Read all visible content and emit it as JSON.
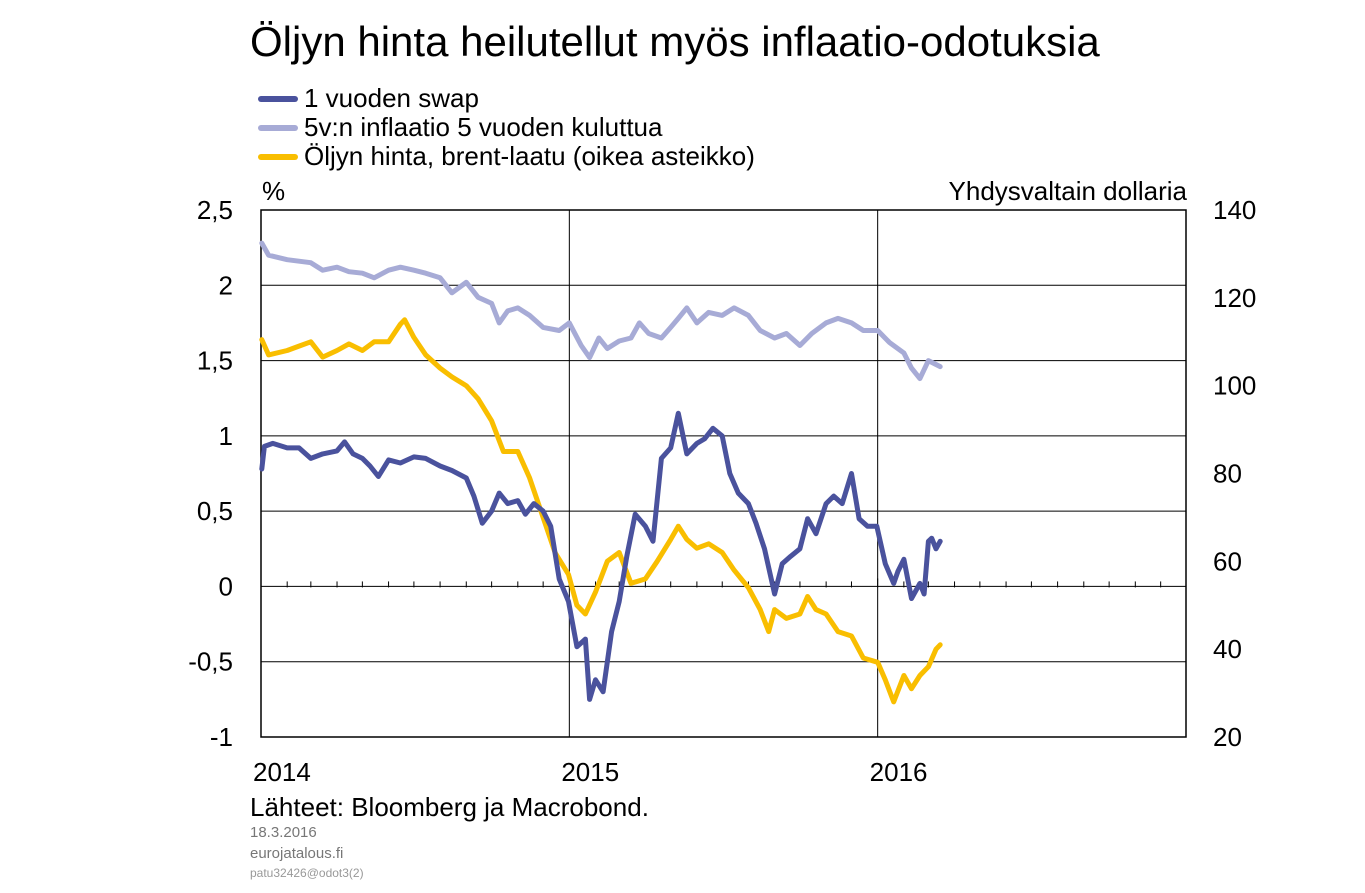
{
  "header": {
    "title": "Öljyn hinta heilutellut myös inflaatio-odotuksia"
  },
  "legend": [
    {
      "label": "1 vuoden swap",
      "color": "#4a529d"
    },
    {
      "label": "5v:n inflaatio 5 vuoden kuluttua",
      "color": "#a7abd6"
    },
    {
      "label": "Öljyn hinta, brent-laatu (oikea asteikko)",
      "color": "#f9be00"
    }
  ],
  "axes": {
    "left_unit": "%",
    "right_unit": "Yhdysvaltain dollaria"
  },
  "footer": {
    "source": "Lähteet: Bloomberg ja Macrobond.",
    "date": "18.3.2016",
    "site": "eurojatalous.fi",
    "code": "patu32426@odot3(2)"
  },
  "chart_data": {
    "type": "line",
    "x_range": [
      "2014-01-01",
      "2016-12-31"
    ],
    "x_tick_labels": [
      "2014",
      "2015",
      "2016"
    ],
    "y_left": {
      "min": -1,
      "max": 2.5,
      "ticks": [
        "2,5",
        "2",
        "1,5",
        "1",
        "0,5",
        "0",
        "-0,5",
        "-1"
      ]
    },
    "y_right": {
      "min": 20,
      "max": 140,
      "ticks": [
        "140",
        "120",
        "100",
        "80",
        "60",
        "40",
        "20"
      ]
    },
    "grid": true,
    "series": [
      {
        "name": "1 vuoden swap",
        "axis": "left",
        "color": "#4a529d",
        "points": [
          [
            "2014-01-02",
            0.78
          ],
          [
            "2014-01-05",
            0.93
          ],
          [
            "2014-01-15",
            0.95
          ],
          [
            "2014-02-01",
            0.92
          ],
          [
            "2014-02-15",
            0.92
          ],
          [
            "2014-03-01",
            0.85
          ],
          [
            "2014-03-15",
            0.88
          ],
          [
            "2014-04-01",
            0.9
          ],
          [
            "2014-04-10",
            0.96
          ],
          [
            "2014-04-20",
            0.88
          ],
          [
            "2014-05-01",
            0.85
          ],
          [
            "2014-05-10",
            0.8
          ],
          [
            "2014-05-20",
            0.73
          ],
          [
            "2014-06-01",
            0.84
          ],
          [
            "2014-06-15",
            0.82
          ],
          [
            "2014-07-01",
            0.86
          ],
          [
            "2014-07-15",
            0.85
          ],
          [
            "2014-08-01",
            0.8
          ],
          [
            "2014-08-15",
            0.77
          ],
          [
            "2014-09-01",
            0.72
          ],
          [
            "2014-09-10",
            0.6
          ],
          [
            "2014-09-20",
            0.42
          ],
          [
            "2014-10-01",
            0.5
          ],
          [
            "2014-10-10",
            0.62
          ],
          [
            "2014-10-20",
            0.55
          ],
          [
            "2014-11-01",
            0.57
          ],
          [
            "2014-11-10",
            0.48
          ],
          [
            "2014-11-20",
            0.55
          ],
          [
            "2014-12-01",
            0.5
          ],
          [
            "2014-12-10",
            0.4
          ],
          [
            "2014-12-20",
            0.05
          ],
          [
            "2014-12-31",
            -0.1
          ],
          [
            "2015-01-10",
            -0.4
          ],
          [
            "2015-01-20",
            -0.35
          ],
          [
            "2015-01-25",
            -0.75
          ],
          [
            "2015-02-01",
            -0.62
          ],
          [
            "2015-02-10",
            -0.7
          ],
          [
            "2015-02-20",
            -0.3
          ],
          [
            "2015-03-01",
            -0.1
          ],
          [
            "2015-03-10",
            0.2
          ],
          [
            "2015-03-20",
            0.48
          ],
          [
            "2015-04-01",
            0.4
          ],
          [
            "2015-04-10",
            0.3
          ],
          [
            "2015-04-20",
            0.85
          ],
          [
            "2015-05-01",
            0.92
          ],
          [
            "2015-05-10",
            1.15
          ],
          [
            "2015-05-20",
            0.88
          ],
          [
            "2015-06-01",
            0.95
          ],
          [
            "2015-06-10",
            0.98
          ],
          [
            "2015-06-20",
            1.05
          ],
          [
            "2015-07-01",
            1.0
          ],
          [
            "2015-07-10",
            0.75
          ],
          [
            "2015-07-20",
            0.62
          ],
          [
            "2015-08-01",
            0.55
          ],
          [
            "2015-08-10",
            0.42
          ],
          [
            "2015-08-20",
            0.25
          ],
          [
            "2015-09-01",
            -0.05
          ],
          [
            "2015-09-10",
            0.15
          ],
          [
            "2015-09-20",
            0.2
          ],
          [
            "2015-10-01",
            0.25
          ],
          [
            "2015-10-10",
            0.45
          ],
          [
            "2015-10-20",
            0.35
          ],
          [
            "2015-11-01",
            0.55
          ],
          [
            "2015-11-10",
            0.6
          ],
          [
            "2015-11-20",
            0.55
          ],
          [
            "2015-12-01",
            0.75
          ],
          [
            "2015-12-10",
            0.45
          ],
          [
            "2015-12-20",
            0.4
          ],
          [
            "2015-12-31",
            0.4
          ],
          [
            "2016-01-10",
            0.15
          ],
          [
            "2016-01-20",
            0.02
          ],
          [
            "2016-01-25",
            0.1
          ],
          [
            "2016-02-01",
            0.18
          ],
          [
            "2016-02-10",
            -0.08
          ],
          [
            "2016-02-20",
            0.02
          ],
          [
            "2016-02-25",
            -0.05
          ],
          [
            "2016-03-01",
            0.3
          ],
          [
            "2016-03-05",
            0.32
          ],
          [
            "2016-03-10",
            0.25
          ],
          [
            "2016-03-15",
            0.3
          ]
        ]
      },
      {
        "name": "5v:n inflaatio 5 vuoden kuluttua",
        "axis": "left",
        "color": "#a7abd6",
        "points": [
          [
            "2014-01-02",
            2.28
          ],
          [
            "2014-01-10",
            2.2
          ],
          [
            "2014-02-01",
            2.17
          ],
          [
            "2014-03-01",
            2.15
          ],
          [
            "2014-03-15",
            2.1
          ],
          [
            "2014-04-01",
            2.12
          ],
          [
            "2014-04-15",
            2.09
          ],
          [
            "2014-05-01",
            2.08
          ],
          [
            "2014-05-15",
            2.05
          ],
          [
            "2014-06-01",
            2.1
          ],
          [
            "2014-06-15",
            2.12
          ],
          [
            "2014-07-01",
            2.1
          ],
          [
            "2014-07-15",
            2.08
          ],
          [
            "2014-08-01",
            2.05
          ],
          [
            "2014-08-15",
            1.95
          ],
          [
            "2014-09-01",
            2.02
          ],
          [
            "2014-09-15",
            1.92
          ],
          [
            "2014-10-01",
            1.88
          ],
          [
            "2014-10-10",
            1.75
          ],
          [
            "2014-10-20",
            1.83
          ],
          [
            "2014-11-01",
            1.85
          ],
          [
            "2014-11-15",
            1.8
          ],
          [
            "2014-12-01",
            1.72
          ],
          [
            "2014-12-20",
            1.7
          ],
          [
            "2015-01-01",
            1.75
          ],
          [
            "2015-01-15",
            1.6
          ],
          [
            "2015-01-25",
            1.52
          ],
          [
            "2015-02-05",
            1.65
          ],
          [
            "2015-02-15",
            1.58
          ],
          [
            "2015-03-01",
            1.63
          ],
          [
            "2015-03-15",
            1.65
          ],
          [
            "2015-03-25",
            1.75
          ],
          [
            "2015-04-05",
            1.68
          ],
          [
            "2015-04-20",
            1.65
          ],
          [
            "2015-05-01",
            1.72
          ],
          [
            "2015-05-10",
            1.78
          ],
          [
            "2015-05-20",
            1.85
          ],
          [
            "2015-06-01",
            1.75
          ],
          [
            "2015-06-15",
            1.82
          ],
          [
            "2015-07-01",
            1.8
          ],
          [
            "2015-07-15",
            1.85
          ],
          [
            "2015-08-01",
            1.8
          ],
          [
            "2015-08-15",
            1.7
          ],
          [
            "2015-09-01",
            1.65
          ],
          [
            "2015-09-15",
            1.68
          ],
          [
            "2015-10-01",
            1.6
          ],
          [
            "2015-10-15",
            1.68
          ],
          [
            "2015-11-01",
            1.75
          ],
          [
            "2015-11-15",
            1.78
          ],
          [
            "2015-12-01",
            1.75
          ],
          [
            "2015-12-15",
            1.7
          ],
          [
            "2016-01-01",
            1.7
          ],
          [
            "2016-01-15",
            1.62
          ],
          [
            "2016-02-01",
            1.55
          ],
          [
            "2016-02-10",
            1.45
          ],
          [
            "2016-02-20",
            1.38
          ],
          [
            "2016-03-01",
            1.5
          ],
          [
            "2016-03-15",
            1.46
          ]
        ]
      },
      {
        "name": "Öljyn hinta, brent-laatu (oikea asteikko)",
        "axis": "right",
        "color": "#f9be00",
        "points": [
          [
            "2014-01-02",
            110.5
          ],
          [
            "2014-01-10",
            107
          ],
          [
            "2014-02-01",
            108
          ],
          [
            "2014-02-15",
            109
          ],
          [
            "2014-03-01",
            110
          ],
          [
            "2014-03-15",
            106.5
          ],
          [
            "2014-04-01",
            108
          ],
          [
            "2014-04-15",
            109.5
          ],
          [
            "2014-05-01",
            108
          ],
          [
            "2014-05-15",
            110
          ],
          [
            "2014-06-01",
            110
          ],
          [
            "2014-06-15",
            114
          ],
          [
            "2014-06-20",
            115
          ],
          [
            "2014-07-01",
            111
          ],
          [
            "2014-07-15",
            107
          ],
          [
            "2014-08-01",
            104
          ],
          [
            "2014-08-15",
            102
          ],
          [
            "2014-09-01",
            100
          ],
          [
            "2014-09-15",
            97
          ],
          [
            "2014-10-01",
            92
          ],
          [
            "2014-10-15",
            85
          ],
          [
            "2014-11-01",
            85
          ],
          [
            "2014-11-15",
            79
          ],
          [
            "2014-12-01",
            70
          ],
          [
            "2014-12-15",
            62
          ],
          [
            "2014-12-31",
            57
          ],
          [
            "2015-01-10",
            50
          ],
          [
            "2015-01-20",
            48
          ],
          [
            "2015-02-01",
            53
          ],
          [
            "2015-02-15",
            60
          ],
          [
            "2015-03-01",
            62
          ],
          [
            "2015-03-15",
            55
          ],
          [
            "2015-04-01",
            56
          ],
          [
            "2015-04-15",
            60
          ],
          [
            "2015-05-01",
            65
          ],
          [
            "2015-05-10",
            68
          ],
          [
            "2015-05-20",
            65
          ],
          [
            "2015-06-01",
            63
          ],
          [
            "2015-06-15",
            64
          ],
          [
            "2015-07-01",
            62
          ],
          [
            "2015-07-15",
            58
          ],
          [
            "2015-08-01",
            54
          ],
          [
            "2015-08-15",
            49
          ],
          [
            "2015-08-25",
            44
          ],
          [
            "2015-09-01",
            49
          ],
          [
            "2015-09-15",
            47
          ],
          [
            "2015-10-01",
            48
          ],
          [
            "2015-10-10",
            52
          ],
          [
            "2015-10-20",
            49
          ],
          [
            "2015-11-01",
            48
          ],
          [
            "2015-11-15",
            44
          ],
          [
            "2015-12-01",
            43
          ],
          [
            "2015-12-15",
            38
          ],
          [
            "2016-01-01",
            37
          ],
          [
            "2016-01-10",
            33
          ],
          [
            "2016-01-20",
            28
          ],
          [
            "2016-02-01",
            34
          ],
          [
            "2016-02-10",
            31
          ],
          [
            "2016-02-20",
            34
          ],
          [
            "2016-03-01",
            36
          ],
          [
            "2016-03-10",
            40
          ],
          [
            "2016-03-15",
            41
          ]
        ]
      }
    ]
  }
}
